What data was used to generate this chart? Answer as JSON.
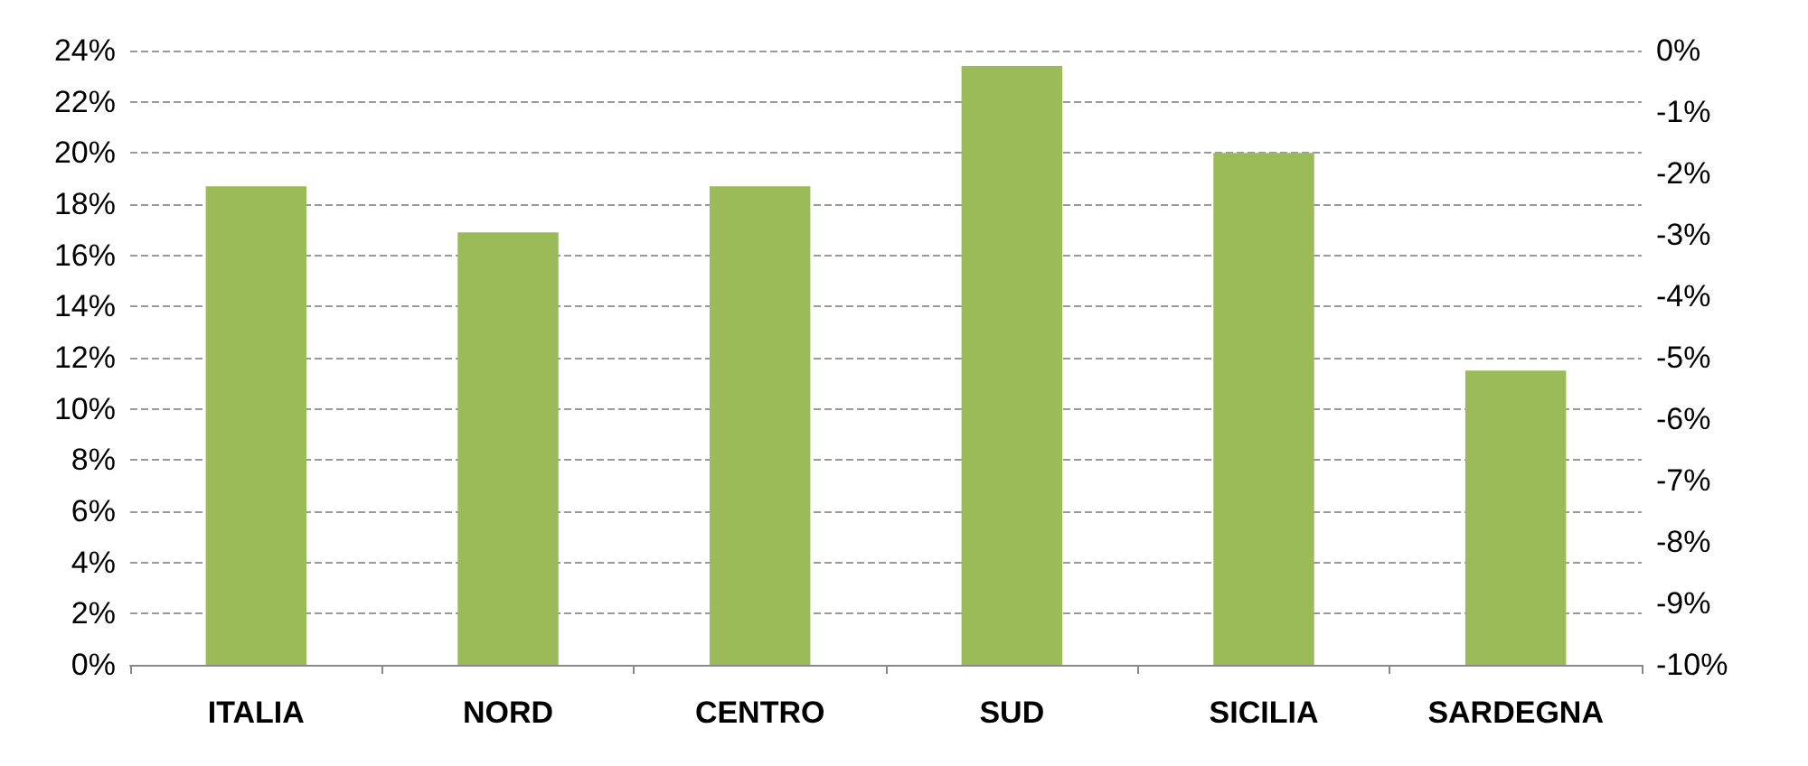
{
  "chart_data": {
    "type": "bar",
    "categories": [
      "ITALIA",
      "NORD",
      "CENTRO",
      "SUD",
      "SICILIA",
      "SARDEGNA"
    ],
    "series": [
      {
        "color": "#9bbb59",
        "values": [
          18.7,
          16.9,
          18.7,
          23.4,
          20.0,
          11.5
        ]
      }
    ],
    "ylim": [
      0,
      24
    ],
    "yticks": [
      {
        "value": 0,
        "label": "0%"
      },
      {
        "value": 2,
        "label": "2%"
      },
      {
        "value": 4,
        "label": "4%"
      },
      {
        "value": 6,
        "label": "6%"
      },
      {
        "value": 8,
        "label": "8%"
      },
      {
        "value": 10,
        "label": "10%"
      },
      {
        "value": 12,
        "label": "12%"
      },
      {
        "value": 14,
        "label": "14%"
      },
      {
        "value": 16,
        "label": "16%"
      },
      {
        "value": 18,
        "label": "18%"
      },
      {
        "value": 20,
        "label": "20%"
      },
      {
        "value": 22,
        "label": "22%"
      },
      {
        "value": 24,
        "label": "24%"
      }
    ],
    "y2lim": [
      -10,
      0
    ],
    "y2ticks": [
      {
        "value": -10,
        "label": "-10%"
      },
      {
        "value": -9,
        "label": "-9%"
      },
      {
        "value": -8,
        "label": "-8%"
      },
      {
        "value": -7,
        "label": "-7%"
      },
      {
        "value": -6,
        "label": "-6%"
      },
      {
        "value": -5,
        "label": "-5%"
      },
      {
        "value": -4,
        "label": "-4%"
      },
      {
        "value": -3,
        "label": "-3%"
      },
      {
        "value": -2,
        "label": "-2%"
      },
      {
        "value": -1,
        "label": "-1%"
      },
      {
        "value": 0,
        "label": "0%"
      }
    ],
    "grid": "y",
    "line_style": "dashed"
  }
}
